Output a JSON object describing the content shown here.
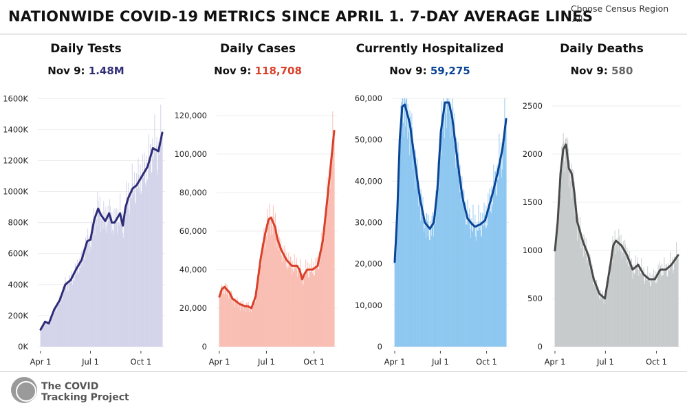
{
  "header": {
    "title": "NATIONWIDE COVID-19 METRICS SINCE APRIL 1. 7-DAY AVERAGE LINES",
    "filter_label": "Choose Census Region",
    "filter_value": "All"
  },
  "logo": {
    "line1": "The COVID",
    "line2": "Tracking Project"
  },
  "colors": {
    "tests_bar": "#d3d3ea",
    "tests_line": "#2f2d78",
    "tests_value": "#2f2d78",
    "cases_bar": "#f9bdb2",
    "cases_line": "#d9402a",
    "cases_value": "#d9402a",
    "hosp_bar": "#8cc6f0",
    "hosp_line": "#0b4596",
    "hosp_value": "#0b4596",
    "deaths_bar": "#c6cacb",
    "deaths_line": "#4a4a4a",
    "deaths_value": "#666666"
  },
  "chart_data": [
    {
      "type": "bar",
      "title": "Daily Tests",
      "date_label": "Nov 9:",
      "latest_value": "1.48M",
      "ylim": [
        0,
        1650000
      ],
      "y_ticks": [
        0,
        200000,
        400000,
        600000,
        800000,
        1000000,
        1200000,
        1400000,
        1600000
      ],
      "y_tick_labels": [
        "0K",
        "200K",
        "400K",
        "600K",
        "800K",
        "1000K",
        "1200K",
        "1400K",
        "1600K"
      ],
      "x_tick_labels": [
        "Apr 1",
        "Jul 1",
        "Oct 1"
      ],
      "x_tick_days": [
        0,
        91,
        183
      ],
      "days": 223,
      "avg_x": [
        0,
        8,
        15,
        25,
        35,
        45,
        55,
        65,
        75,
        85,
        91,
        98,
        105,
        110,
        118,
        125,
        130,
        135,
        145,
        150,
        155,
        160,
        168,
        175,
        185,
        195,
        205,
        215,
        222
      ],
      "avg_y": [
        110000,
        160000,
        150000,
        240000,
        300000,
        400000,
        430000,
        500000,
        560000,
        680000,
        690000,
        820000,
        890000,
        850000,
        810000,
        860000,
        800000,
        800000,
        860000,
        780000,
        900000,
        960000,
        1020000,
        1040000,
        1100000,
        1160000,
        1280000,
        1260000,
        1380000
      ]
    },
    {
      "type": "bar",
      "title": "Daily Cases",
      "date_label": "Nov 9:",
      "latest_value": "118,708",
      "ylim": [
        0,
        130000
      ],
      "y_ticks": [
        0,
        20000,
        40000,
        60000,
        80000,
        100000,
        120000
      ],
      "y_tick_labels": [
        "0",
        "20,000",
        "40,000",
        "60,000",
        "80,000",
        "100,000",
        "120,000"
      ],
      "x_tick_labels": [
        "Apr 1",
        "Jul 1",
        "Oct 1"
      ],
      "x_tick_days": [
        0,
        91,
        183
      ],
      "days": 223,
      "avg_x": [
        0,
        5,
        10,
        20,
        25,
        30,
        40,
        50,
        55,
        62,
        70,
        80,
        88,
        95,
        100,
        108,
        112,
        120,
        130,
        140,
        150,
        155,
        160,
        165,
        170,
        180,
        190,
        200,
        210,
        222
      ],
      "avg_y": [
        26000,
        30000,
        31000,
        28000,
        25000,
        24000,
        22000,
        21000,
        21000,
        20000,
        26000,
        46000,
        58000,
        66000,
        67000,
        62000,
        56000,
        50000,
        45000,
        42000,
        42000,
        40000,
        35000,
        38000,
        40000,
        40000,
        42000,
        55000,
        80000,
        112000
      ]
    },
    {
      "type": "bar",
      "title": "Currently Hospitalized",
      "date_label": "Nov 9:",
      "latest_value": "59,275",
      "ylim": [
        0,
        60000
      ],
      "y_ticks": [
        0,
        10000,
        20000,
        30000,
        40000,
        50000,
        60000
      ],
      "y_tick_labels": [
        "0",
        "10,000",
        "20,000",
        "30,000",
        "40,000",
        "50,000",
        "60,000"
      ],
      "x_tick_labels": [
        "Apr 1",
        "Jul 1",
        "Oct 1"
      ],
      "x_tick_days": [
        0,
        91,
        183
      ],
      "days": 223,
      "avg_x": [
        0,
        5,
        10,
        15,
        20,
        30,
        40,
        50,
        60,
        70,
        78,
        85,
        92,
        100,
        108,
        115,
        125,
        135,
        145,
        155,
        160,
        170,
        180,
        195,
        205,
        215,
        222
      ],
      "avg_y": [
        20500,
        32000,
        50000,
        58000,
        58500,
        54000,
        45000,
        36000,
        30000,
        28500,
        30000,
        38000,
        52000,
        59000,
        59000,
        55000,
        45000,
        36000,
        31000,
        29500,
        29000,
        29500,
        30500,
        37000,
        42000,
        48000,
        55000
      ]
    },
    {
      "type": "bar",
      "title": "Daily Deaths",
      "date_label": "Nov 9:",
      "latest_value": "580",
      "ylim": [
        0,
        2600
      ],
      "y_ticks": [
        0,
        500,
        1000,
        1500,
        2000,
        2500
      ],
      "y_tick_labels": [
        "0",
        "500",
        "1000",
        "1500",
        "2000",
        "2500"
      ],
      "x_tick_labels": [
        "Apr 1",
        "Jul 1",
        "Oct 1"
      ],
      "x_tick_days": [
        0,
        91,
        183
      ],
      "days": 223,
      "avg_x": [
        0,
        5,
        10,
        15,
        20,
        25,
        30,
        35,
        40,
        50,
        60,
        70,
        80,
        90,
        100,
        105,
        110,
        120,
        130,
        140,
        150,
        160,
        170,
        180,
        190,
        200,
        210,
        222
      ],
      "avg_y": [
        1000,
        1300,
        1800,
        2050,
        2100,
        1850,
        1800,
        1600,
        1300,
        1100,
        950,
        700,
        550,
        500,
        850,
        1050,
        1100,
        1050,
        950,
        800,
        850,
        750,
        700,
        700,
        800,
        800,
        850,
        950
      ]
    }
  ]
}
